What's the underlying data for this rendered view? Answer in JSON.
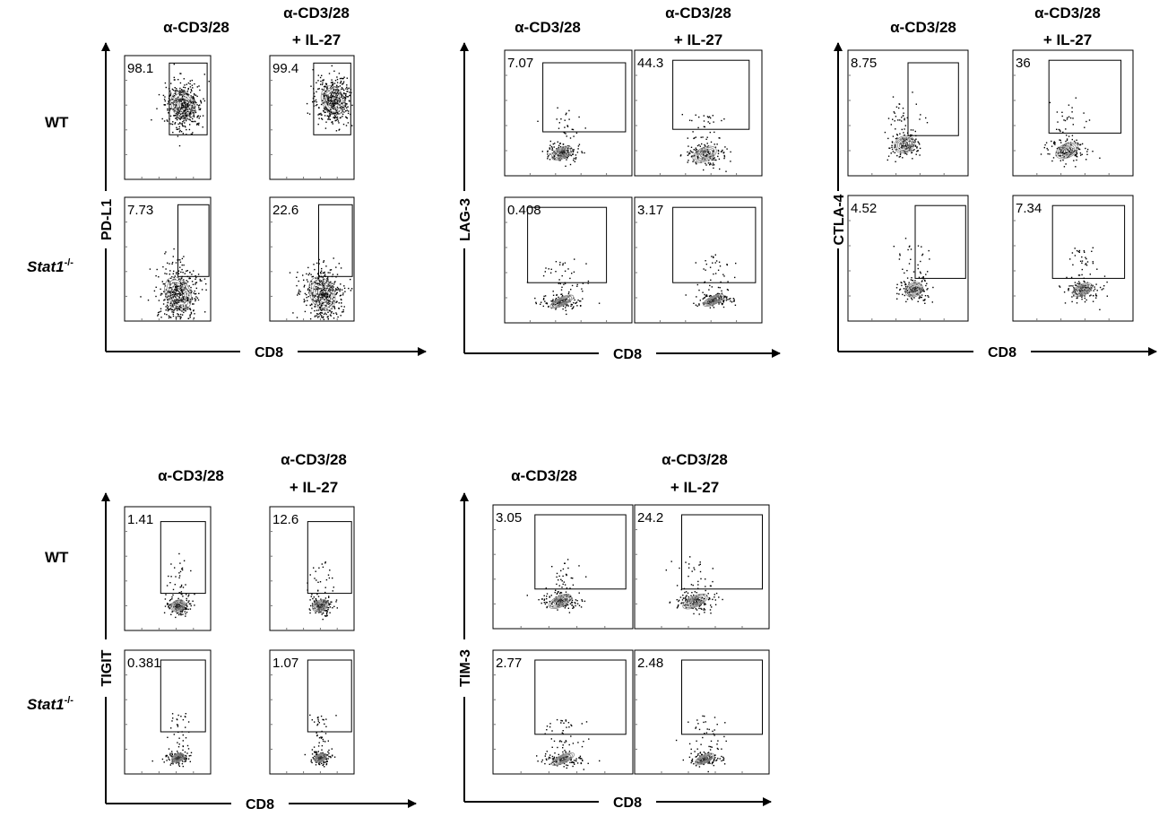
{
  "row_labels": {
    "wt": "WT",
    "ko_main": "Stat1",
    "ko_sup": "-/-"
  },
  "column_headers": {
    "ctrl": "α-CD3/28",
    "il27_line1": "α-CD3/28",
    "il27_line2": "+ IL-27"
  },
  "x_axis_label": "CD8",
  "chart_data": [
    {
      "type": "contour",
      "marker": "PD-L1",
      "xlabel": "CD8",
      "ylabel": "PD-L1",
      "conditions": [
        "α-CD3/28",
        "α-CD3/28 + IL-27"
      ],
      "genotypes": [
        "WT",
        "Stat1-/-"
      ],
      "gate_percentages": [
        {
          "genotype": "WT",
          "condition": "α-CD3/28",
          "value": "98.1"
        },
        {
          "genotype": "WT",
          "condition": "α-CD3/28 + IL-27",
          "value": "99.4"
        },
        {
          "genotype": "Stat1-/-",
          "condition": "α-CD3/28",
          "value": "7.73"
        },
        {
          "genotype": "Stat1-/-",
          "condition": "α-CD3/28 + IL-27",
          "value": "22.6"
        }
      ]
    },
    {
      "type": "contour",
      "marker": "LAG-3",
      "xlabel": "CD8",
      "ylabel": "LAG-3",
      "conditions": [
        "α-CD3/28",
        "α-CD3/28 + IL-27"
      ],
      "genotypes": [
        "WT",
        "Stat1-/-"
      ],
      "gate_percentages": [
        {
          "genotype": "WT",
          "condition": "α-CD3/28",
          "value": "7.07"
        },
        {
          "genotype": "WT",
          "condition": "α-CD3/28 + IL-27",
          "value": "44.3"
        },
        {
          "genotype": "Stat1-/-",
          "condition": "α-CD3/28",
          "value": "0.408"
        },
        {
          "genotype": "Stat1-/-",
          "condition": "α-CD3/28 + IL-27",
          "value": "3.17"
        }
      ]
    },
    {
      "type": "contour",
      "marker": "CTLA-4",
      "xlabel": "CD8",
      "ylabel": "CTLA-4",
      "conditions": [
        "α-CD3/28",
        "α-CD3/28 + IL-27"
      ],
      "genotypes": [
        "WT",
        "Stat1-/-"
      ],
      "gate_percentages": [
        {
          "genotype": "WT",
          "condition": "α-CD3/28",
          "value": "8.75"
        },
        {
          "genotype": "WT",
          "condition": "α-CD3/28 + IL-27",
          "value": "36"
        },
        {
          "genotype": "Stat1-/-",
          "condition": "α-CD3/28",
          "value": "4.52"
        },
        {
          "genotype": "Stat1-/-",
          "condition": "α-CD3/28 + IL-27",
          "value": "7.34"
        }
      ]
    },
    {
      "type": "contour",
      "marker": "TIGIT",
      "xlabel": "CD8",
      "ylabel": "TIGIT",
      "conditions": [
        "α-CD3/28",
        "α-CD3/28 + IL-27"
      ],
      "genotypes": [
        "WT",
        "Stat1-/-"
      ],
      "gate_percentages": [
        {
          "genotype": "WT",
          "condition": "α-CD3/28",
          "value": "1.41"
        },
        {
          "genotype": "WT",
          "condition": "α-CD3/28 + IL-27",
          "value": "12.6"
        },
        {
          "genotype": "Stat1-/-",
          "condition": "α-CD3/28",
          "value": "0.381"
        },
        {
          "genotype": "Stat1-/-",
          "condition": "α-CD3/28 + IL-27",
          "value": "1.07"
        }
      ]
    },
    {
      "type": "contour",
      "marker": "TIM-3",
      "xlabel": "CD8",
      "ylabel": "TIM-3",
      "conditions": [
        "α-CD3/28",
        "α-CD3/28 + IL-27"
      ],
      "genotypes": [
        "WT",
        "Stat1-/-"
      ],
      "gate_percentages": [
        {
          "genotype": "WT",
          "condition": "α-CD3/28",
          "value": "3.05"
        },
        {
          "genotype": "WT",
          "condition": "α-CD3/28 + IL-27",
          "value": "24.2"
        },
        {
          "genotype": "Stat1-/-",
          "condition": "α-CD3/28",
          "value": "2.77"
        },
        {
          "genotype": "Stat1-/-",
          "condition": "α-CD3/28 + IL-27",
          "value": "2.48"
        }
      ]
    }
  ]
}
